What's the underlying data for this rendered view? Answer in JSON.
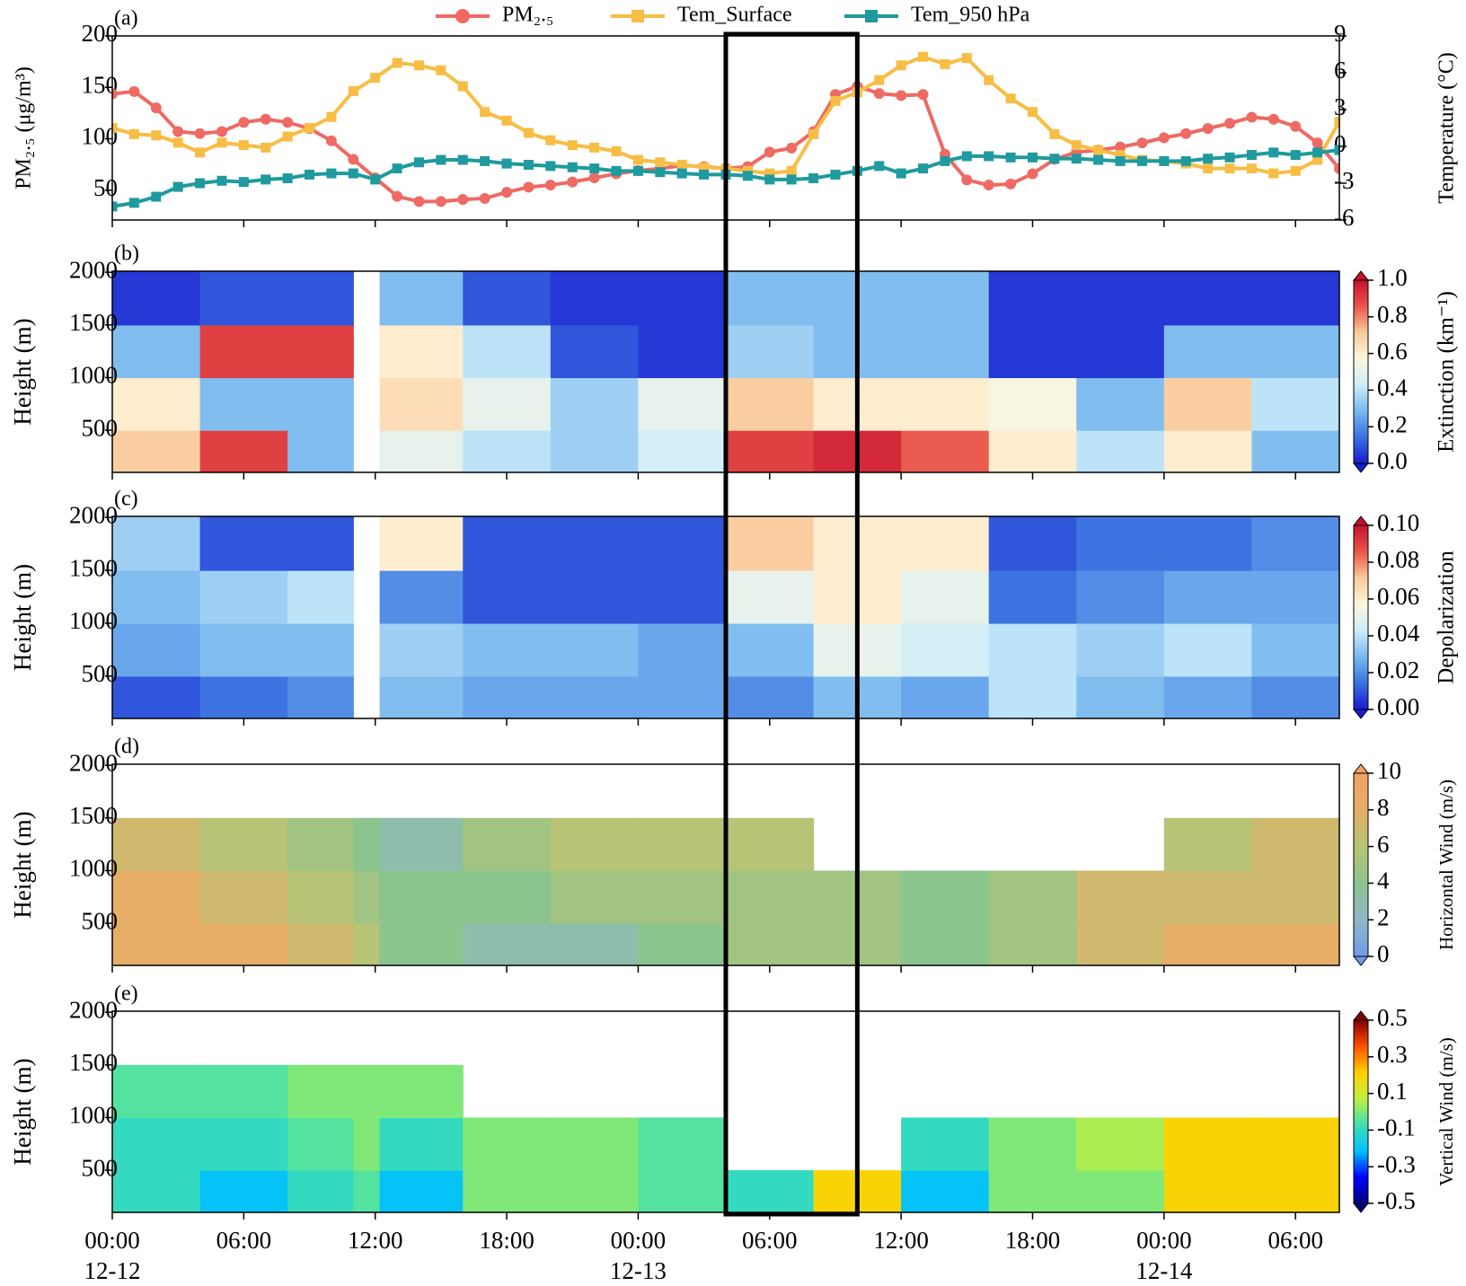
{
  "chart_data": [
    {
      "type": "line",
      "panel_label": "(a)",
      "ylabel": "PM₂.₅ (μg/m³)",
      "y2label": "Temperature (°C)",
      "legend": "top center",
      "xlim": [
        0,
        56
      ],
      "ylim": [
        21,
        200
      ],
      "yticks": [
        50,
        100,
        150,
        200
      ],
      "y2lim": [
        -6,
        9
      ],
      "y2ticks": [
        -6,
        -3,
        0,
        3,
        6,
        9
      ],
      "x": [
        0,
        1,
        2,
        3,
        4,
        5,
        6,
        7,
        8,
        9,
        10,
        11,
        12,
        13,
        14,
        15,
        16,
        17,
        18,
        19,
        20,
        21,
        22,
        23,
        24,
        25,
        26,
        27,
        28,
        29,
        30,
        31,
        32,
        33,
        34,
        35,
        36,
        37,
        38,
        39,
        40,
        41,
        42,
        43,
        44,
        45,
        46,
        47,
        48,
        49,
        50,
        51,
        52,
        53,
        54,
        55,
        56
      ],
      "series": [
        {
          "name": "PM₂.₅",
          "color": "#ee6a63",
          "marker": "circle",
          "values": [
            143.6,
            146,
            130,
            107,
            105,
            107,
            116,
            119,
            116,
            110,
            98,
            80,
            62,
            44,
            39,
            39,
            41,
            42,
            48,
            53,
            55,
            58,
            62,
            66,
            69,
            71,
            74,
            73,
            71,
            73,
            87,
            91,
            107,
            143,
            151,
            144,
            142,
            143,
            85,
            60,
            55,
            56,
            66,
            80,
            87,
            89,
            92,
            96,
            101,
            105,
            110,
            115,
            121,
            119,
            112,
            96,
            71
          ]
        },
        {
          "name": "Tem_Surface",
          "color": "#f7bd45",
          "marker": "square",
          "axis": "y2",
          "values": [
            1.5,
            1.0,
            0.9,
            0.3,
            -0.5,
            0.3,
            0.1,
            -0.1,
            0.8,
            1.5,
            2.4,
            4.5,
            5.6,
            6.8,
            6.6,
            6.2,
            4.9,
            2.8,
            2.1,
            1.1,
            0.5,
            0.1,
            -0.1,
            -0.4,
            -1.1,
            -1.3,
            -1.5,
            -1.7,
            -1.8,
            -2.0,
            -2.2,
            -2.0,
            1.0,
            3.7,
            4.4,
            5.4,
            6.6,
            7.3,
            6.7,
            7.2,
            5.4,
            3.9,
            2.8,
            1.0,
            0.1,
            -0.3,
            -0.7,
            -1.1,
            -1.2,
            -1.4,
            -1.8,
            -1.8,
            -1.8,
            -2.2,
            -2.0,
            -1.1,
            2.0
          ]
        },
        {
          "name": "Tem_950 hPa",
          "color": "#1f9a9e",
          "marker": "square",
          "axis": "y2",
          "values": [
            -4.9,
            -4.6,
            -4.1,
            -3.3,
            -3.0,
            -2.8,
            -2.9,
            -2.7,
            -2.6,
            -2.3,
            -2.2,
            -2.2,
            -2.7,
            -1.8,
            -1.3,
            -1.1,
            -1.1,
            -1.2,
            -1.4,
            -1.5,
            -1.6,
            -1.7,
            -1.8,
            -2.0,
            -2.0,
            -2.1,
            -2.2,
            -2.3,
            -2.3,
            -2.4,
            -2.7,
            -2.7,
            -2.6,
            -2.3,
            -2.0,
            -1.6,
            -2.2,
            -1.8,
            -1.2,
            -0.8,
            -0.8,
            -0.9,
            -0.9,
            -1.0,
            -1.0,
            -1.1,
            -1.2,
            -1.2,
            -1.2,
            -1.2,
            -1.0,
            -0.9,
            -0.7,
            -0.5,
            -0.7,
            -0.5,
            -0.3
          ]
        }
      ]
    },
    {
      "type": "heatmap",
      "panel_label": "(b)",
      "ylabel": "Height (m)",
      "xlim": [
        0,
        56
      ],
      "ylim": [
        100,
        2010
      ],
      "yticks": [
        500,
        1000,
        1500,
        2000
      ],
      "x_edges": [
        0,
        4,
        8,
        11,
        12.2,
        16,
        20,
        24,
        28,
        32,
        36,
        40,
        44,
        48,
        52,
        56
      ],
      "y_edges": [
        100,
        500,
        1000,
        1500,
        2010
      ],
      "z": [
        [
          0.7,
          0.9,
          0.3,
          null,
          0.5,
          0.4,
          0.35,
          0.45,
          0.9,
          0.95,
          0.85,
          0.6,
          0.4,
          0.6,
          0.3
        ],
        [
          0.6,
          0.3,
          0.3,
          null,
          0.65,
          0.5,
          0.35,
          0.5,
          0.7,
          0.6,
          0.6,
          0.55,
          0.3,
          0.7,
          0.4
        ],
        [
          0.3,
          0.9,
          0.9,
          null,
          0.6,
          0.4,
          0.1,
          0.05,
          0.35,
          0.3,
          0.3,
          0.05,
          0.05,
          0.3,
          0.3
        ],
        [
          0.05,
          0.1,
          0.1,
          null,
          0.3,
          0.1,
          0.05,
          0.05,
          0.3,
          0.3,
          0.3,
          0.05,
          0.05,
          0.05,
          0.05
        ]
      ],
      "colorbar": {
        "label": "Extinction (km⁻¹)",
        "clim": [
          0,
          1
        ],
        "ticks": [
          {
            "value": 0,
            "label": "0.0"
          },
          0.2,
          0.4,
          0.6,
          0.8,
          {
            "value": 1,
            "label": "1.0"
          }
        ],
        "colors": [
          "#1a1ad0",
          "#3a70e0",
          "#7ab8ef",
          "#cdeefa",
          "#fff6dc",
          "#f9c99a",
          "#e9564c",
          "#c8102e"
        ]
      }
    },
    {
      "type": "heatmap",
      "panel_label": "(c)",
      "ylabel": "Height (m)",
      "xlim": [
        0,
        56
      ],
      "ylim": [
        100,
        2010
      ],
      "yticks": [
        500,
        1000,
        1500,
        2000
      ],
      "x_edges": [
        0,
        4,
        8,
        11,
        12.2,
        16,
        20,
        24,
        28,
        32,
        36,
        40,
        44,
        48,
        52,
        56
      ],
      "y_edges": [
        100,
        500,
        1000,
        1500,
        2010
      ],
      "z": [
        [
          0.01,
          0.015,
          0.02,
          null,
          0.03,
          0.025,
          0.025,
          0.025,
          0.02,
          0.03,
          0.025,
          0.04,
          0.03,
          0.025,
          0.02
        ],
        [
          0.025,
          0.03,
          0.03,
          null,
          0.035,
          0.03,
          0.03,
          0.025,
          0.03,
          0.05,
          0.045,
          0.04,
          0.035,
          0.04,
          0.03
        ],
        [
          0.03,
          0.035,
          0.04,
          null,
          0.02,
          0.01,
          0.01,
          0.01,
          0.05,
          0.06,
          0.05,
          0.015,
          0.02,
          0.025,
          0.025
        ],
        [
          0.035,
          0.01,
          0.01,
          null,
          0.06,
          0.01,
          0.01,
          0.01,
          0.07,
          0.06,
          0.06,
          0.01,
          0.015,
          0.015,
          0.02
        ]
      ],
      "colorbar": {
        "label": "Depolarization",
        "clim": [
          0,
          0.1
        ],
        "ticks": [
          {
            "value": 0,
            "label": "0.00"
          },
          {
            "value": 0.02,
            "label": "0.02"
          },
          {
            "value": 0.04,
            "label": "0.04"
          },
          {
            "value": 0.06,
            "label": "0.06"
          },
          {
            "value": 0.08,
            "label": "0.08"
          },
          {
            "value": 0.1,
            "label": "0.10"
          }
        ],
        "colors": [
          "#1a1ad0",
          "#3a70e0",
          "#7ab8ef",
          "#cdeefa",
          "#fff6dc",
          "#f9c99a",
          "#e9564c",
          "#c8102e"
        ]
      }
    },
    {
      "type": "heatmap",
      "panel_label": "(d)",
      "ylabel": "Height (m)",
      "xlim": [
        0,
        56
      ],
      "ylim": [
        100,
        2010
      ],
      "yticks": [
        500,
        1000,
        1500,
        2000
      ],
      "x_edges": [
        0,
        4,
        8,
        11,
        12.2,
        16,
        20,
        24,
        28,
        32,
        36,
        40,
        44,
        48,
        52,
        56
      ],
      "y_edges": [
        100,
        500,
        1000,
        1500
      ],
      "z": [
        [
          8,
          8,
          7,
          6,
          4,
          3,
          3,
          4,
          5,
          5,
          4,
          5,
          7,
          8,
          8
        ],
        [
          8,
          7,
          6,
          5,
          4,
          4,
          5,
          5,
          5,
          5,
          4,
          5,
          7,
          7,
          7
        ],
        [
          7,
          6,
          5,
          4,
          3,
          5,
          6,
          6,
          6,
          null,
          null,
          null,
          null,
          6,
          7
        ]
      ],
      "colorbar": {
        "label": "Horizontal Wind (m/s)",
        "clim": [
          0,
          10
        ],
        "ticks": [
          0,
          2,
          4,
          6,
          8,
          10
        ],
        "colors": [
          "#6f9ae8",
          "#8fb8c8",
          "#8cc48e",
          "#b7c476",
          "#e6ae66",
          "#f2a068"
        ]
      }
    },
    {
      "type": "heatmap",
      "panel_label": "(e)",
      "ylabel": "Height (m)",
      "xlim": [
        0,
        56
      ],
      "ylim": [
        100,
        2010
      ],
      "yticks": [
        500,
        1000,
        1500,
        2000
      ],
      "x_edges": [
        0,
        4,
        8,
        11,
        12.2,
        16,
        20,
        24,
        28,
        32,
        36,
        40,
        44,
        48,
        52,
        56
      ],
      "y_edges": [
        100,
        500,
        1000,
        1500
      ],
      "z": [
        [
          -0.1,
          -0.2,
          -0.1,
          -0.05,
          -0.2,
          0,
          0,
          -0.05,
          -0.1,
          0.2,
          -0.2,
          0,
          0,
          0.2,
          0.2
        ],
        [
          -0.1,
          -0.1,
          -0.05,
          0,
          -0.1,
          0,
          0,
          -0.05,
          null,
          null,
          -0.1,
          0,
          0.05,
          0.2,
          0.2
        ],
        [
          -0.05,
          -0.05,
          0,
          0,
          0,
          null,
          null,
          null,
          null,
          null,
          null,
          null,
          null,
          null,
          null
        ]
      ],
      "colorbar": {
        "label": "Vertical Wind (m/s)",
        "clim": [
          -0.5,
          0.5
        ],
        "ticks": [
          -0.5,
          -0.3,
          -0.1,
          0.1,
          0.3,
          0.5
        ],
        "colors": [
          "#000080",
          "#0000ff",
          "#00c0ff",
          "#40e0b0",
          "#c0f040",
          "#ffd000",
          "#ff5000",
          "#800000"
        ]
      },
      "xticks": [
        {
          "value": 0,
          "label": "00:00"
        },
        {
          "value": 6,
          "label": "06:00"
        },
        {
          "value": 12,
          "label": "12:00"
        },
        {
          "value": 18,
          "label": "18:00"
        },
        {
          "value": 24,
          "label": "00:00"
        },
        {
          "value": 30,
          "label": "06:00"
        },
        {
          "value": 36,
          "label": "12:00"
        },
        {
          "value": 42,
          "label": "18:00"
        },
        {
          "value": 48,
          "label": "00:00"
        },
        {
          "value": 54,
          "label": "06:00"
        }
      ],
      "xtick_dates": [
        {
          "value": 0,
          "label": "12-12"
        },
        {
          "value": 24,
          "label": "12-13"
        },
        {
          "value": 48,
          "label": "12-14"
        }
      ]
    }
  ],
  "highlight": {
    "xlim": [
      28,
      34
    ]
  }
}
